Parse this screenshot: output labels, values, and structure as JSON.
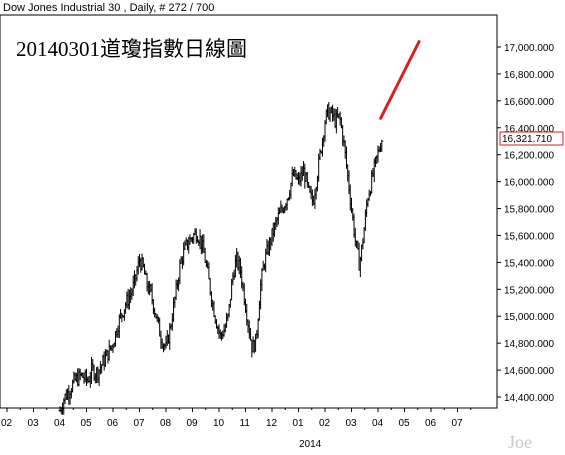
{
  "header": "Dow Jones Industrial 30 , Daily, # 272 / 700",
  "watermark": "Joe",
  "chart_data": {
    "type": "bar",
    "style": "ohlc-daily",
    "title": "20140301道瓊指數日線圖",
    "ylim": [
      14250,
      17250
    ],
    "yticks": [
      14400,
      14600,
      14800,
      15000,
      15200,
      15400,
      15600,
      15800,
      16000,
      16200,
      16400,
      16600,
      16800,
      17000
    ],
    "ytick_labels": [
      "14,400.000",
      "14,600.000",
      "14,800.000",
      "15,000.000",
      "15,200.000",
      "15,400.000",
      "15,600.000",
      "15,800.000",
      "16,000.000",
      "16,200.000",
      "16,400.000",
      "16,600.000",
      "16,800.000",
      "17,000.000"
    ],
    "x_month_labels": [
      "02",
      "03",
      "04",
      "05",
      "06",
      "07",
      "08",
      "09",
      "10",
      "11",
      "12",
      "01",
      "02",
      "03",
      "04",
      "05",
      "06",
      "07"
    ],
    "x_year_label": "2014",
    "last_value_label": "16,321.710",
    "last_value": 16321.71,
    "price_path": [
      [
        3.0,
        14300
      ],
      [
        3.15,
        14390
      ],
      [
        3.35,
        14450
      ],
      [
        3.55,
        14520
      ],
      [
        3.8,
        14560
      ],
      [
        4.05,
        14520
      ],
      [
        4.2,
        14600
      ],
      [
        4.4,
        14580
      ],
      [
        4.6,
        14650
      ],
      [
        4.8,
        14720
      ],
      [
        5.0,
        14800
      ],
      [
        5.2,
        14950
      ],
      [
        5.45,
        15080
      ],
      [
        5.7,
        15180
      ],
      [
        5.85,
        15280
      ],
      [
        6.0,
        15420
      ],
      [
        6.15,
        15350
      ],
      [
        6.25,
        15250
      ],
      [
        6.45,
        15150
      ],
      [
        6.65,
        14980
      ],
      [
        6.8,
        14850
      ],
      [
        7.0,
        14760
      ],
      [
        7.15,
        14900
      ],
      [
        7.35,
        15150
      ],
      [
        7.55,
        15400
      ],
      [
        7.75,
        15520
      ],
      [
        7.95,
        15580
      ],
      [
        8.15,
        15620
      ],
      [
        8.3,
        15570
      ],
      [
        8.45,
        15450
      ],
      [
        8.6,
        15280
      ],
      [
        8.75,
        15100
      ],
      [
        8.9,
        14960
      ],
      [
        9.05,
        14850
      ],
      [
        9.2,
        14900
      ],
      [
        9.35,
        15000
      ],
      [
        9.5,
        15280
      ],
      [
        9.65,
        15420
      ],
      [
        9.8,
        15350
      ],
      [
        9.95,
        15150
      ],
      [
        10.1,
        14950
      ],
      [
        10.25,
        14760
      ],
      [
        10.4,
        14820
      ],
      [
        10.55,
        15200
      ],
      [
        10.7,
        15400
      ],
      [
        10.85,
        15500
      ],
      [
        11.0,
        15600
      ],
      [
        11.2,
        15720
      ],
      [
        11.4,
        15800
      ],
      [
        11.6,
        15900
      ],
      [
        11.8,
        16050
      ],
      [
        12.0,
        16000
      ],
      [
        12.2,
        16080
      ],
      [
        12.4,
        15900
      ],
      [
        12.55,
        15850
      ],
      [
        12.7,
        16050
      ],
      [
        12.85,
        16250
      ],
      [
        13.0,
        16450
      ],
      [
        13.1,
        16520
      ],
      [
        13.25,
        16500
      ],
      [
        13.4,
        16450
      ],
      [
        13.55,
        16480
      ],
      [
        13.7,
        16300
      ],
      [
        13.85,
        16050
      ],
      [
        14.0,
        15800
      ],
      [
        14.15,
        15550
      ],
      [
        14.3,
        15380
      ],
      [
        14.45,
        15600
      ],
      [
        14.6,
        15880
      ],
      [
        14.75,
        16000
      ],
      [
        14.9,
        16130
      ],
      [
        15.05,
        16250
      ],
      [
        15.15,
        16321.71
      ]
    ],
    "annotation": {
      "type": "trend-line",
      "color": "#dc1e1e",
      "from": [
        15.1,
        16470
      ],
      "to": [
        16.55,
        17040
      ]
    },
    "grid": false,
    "legend": "none"
  }
}
